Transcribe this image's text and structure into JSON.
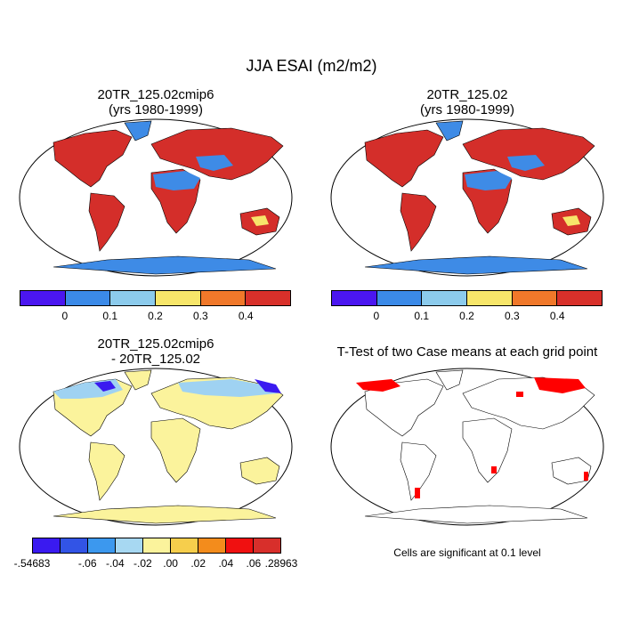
{
  "title": "JJA ESAI (m2/m2)",
  "panels": {
    "top_left": {
      "line1": "20TR_125.02cmip6",
      "line2": "(yrs 1980-1999)"
    },
    "top_right": {
      "line1": "20TR_125.02",
      "line2": "(yrs 1980-1999)"
    },
    "bottom_left": {
      "line1": "20TR_125.02cmip6",
      "line2": "- 20TR_125.02"
    },
    "bottom_right": {
      "line1": "T-Test of two Case means at each grid point"
    }
  },
  "colorbar_main": {
    "colors": [
      "#4b16f0",
      "#3b8ae8",
      "#8ccbec",
      "#f7e66a",
      "#f0782a",
      "#d8302a"
    ],
    "labels": [
      "0",
      "0.1",
      "0.2",
      "0.3",
      "0.4"
    ]
  },
  "colorbar_diff": {
    "colors": [
      "#3a1af0",
      "#3254e6",
      "#3c98ee",
      "#a7d8f2",
      "#fbf39c",
      "#f6ce4c",
      "#f38c1c",
      "#f01010",
      "#d82f2b"
    ],
    "labels": [
      "-.54683",
      "-.06",
      "-.04",
      "-.02",
      ".00",
      ".02",
      ".04",
      ".06",
      ".28963"
    ]
  },
  "significance_note": "Cells are significant at 0.1 level",
  "map_colors": {
    "ocean": "#ffffff",
    "coast": "#000000",
    "high": "#d42e2a",
    "low": "#3e8be6",
    "mid": "#f7e46a",
    "diff_base": "#fbf39c",
    "diff_neg": "#9fd2f2",
    "diff_strong_neg": "#3a1af0",
    "signif": "#ff0000"
  }
}
